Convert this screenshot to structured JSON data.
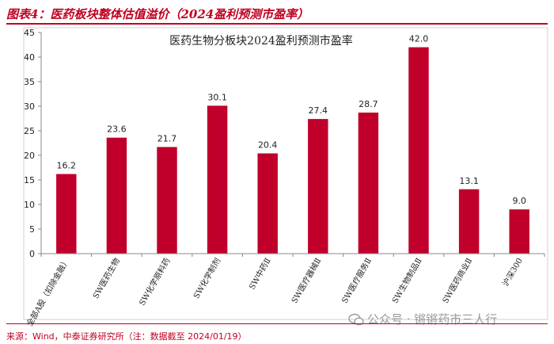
{
  "figure": {
    "title": "图表4：医药板块整体估值溢价（2024盈利预测市盈率）",
    "source": "来源：Wind，中泰证券研究所（注：数据截至 2024/01/19）",
    "watermark": "公众号 · 锵锵药市三人行"
  },
  "colors": {
    "bar": "#c0002a",
    "accent": "#c00020",
    "axis": "#888888"
  },
  "chart_data": {
    "type": "bar",
    "title": "医药生物分板块2024盈利预测市盈率",
    "categories": [
      "全部A股（扣除金融）",
      "SW医药生物",
      "SW化学原料药",
      "SW化学制剂",
      "SW中药Ⅱ",
      "SW医疗器械Ⅱ",
      "SW医疗服务Ⅱ",
      "SW生物制品Ⅱ",
      "SW医药商业Ⅱ",
      "沪深300"
    ],
    "values": [
      16.2,
      23.6,
      21.7,
      30.1,
      20.4,
      27.4,
      28.7,
      42.0,
      13.1,
      9.0
    ],
    "value_labels": [
      "16.2",
      "23.6",
      "21.7",
      "30.1",
      "20.4",
      "27.4",
      "28.7",
      "42.0",
      "13.1",
      "9.0"
    ],
    "yticks": [
      "0",
      "5",
      "10",
      "15",
      "20",
      "25",
      "30",
      "35",
      "40",
      "45"
    ],
    "ylim": [
      0,
      45
    ],
    "xlabel": "",
    "ylabel": "",
    "grid": false,
    "legend": "none"
  }
}
